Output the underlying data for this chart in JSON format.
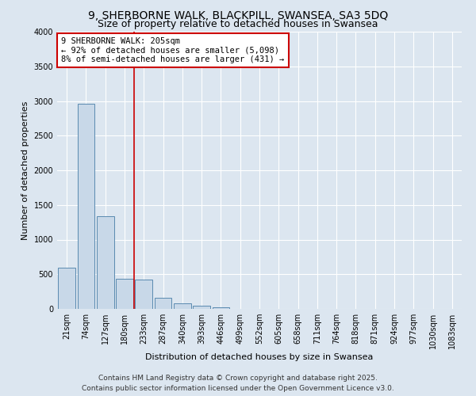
{
  "title": "9, SHERBORNE WALK, BLACKPILL, SWANSEA, SA3 5DQ",
  "subtitle": "Size of property relative to detached houses in Swansea",
  "xlabel": "Distribution of detached houses by size in Swansea",
  "ylabel": "Number of detached properties",
  "footer_line1": "Contains HM Land Registry data © Crown copyright and database right 2025.",
  "footer_line2": "Contains public sector information licensed under the Open Government Licence v3.0.",
  "categories": [
    "21sqm",
    "74sqm",
    "127sqm",
    "180sqm",
    "233sqm",
    "287sqm",
    "340sqm",
    "393sqm",
    "446sqm",
    "499sqm",
    "552sqm",
    "605sqm",
    "658sqm",
    "711sqm",
    "764sqm",
    "818sqm",
    "871sqm",
    "924sqm",
    "977sqm",
    "1030sqm",
    "1083sqm"
  ],
  "values": [
    600,
    2960,
    1340,
    430,
    420,
    165,
    75,
    45,
    20,
    0,
    0,
    0,
    0,
    0,
    0,
    0,
    0,
    0,
    0,
    0,
    0
  ],
  "bar_color": "#c8d8e8",
  "bar_edge_color": "#5a8ab0",
  "vline_color": "#cc0000",
  "annotation_text": "9 SHERBORNE WALK: 205sqm\n← 92% of detached houses are smaller (5,098)\n8% of semi-detached houses are larger (431) →",
  "annotation_box_facecolor": "#ffffff",
  "annotation_box_edgecolor": "#cc0000",
  "ylim": [
    0,
    4000
  ],
  "yticks": [
    0,
    500,
    1000,
    1500,
    2000,
    2500,
    3000,
    3500,
    4000
  ],
  "background_color": "#dce6f0",
  "plot_background_color": "#dce6f0",
  "grid_color": "#ffffff",
  "title_fontsize": 10,
  "subtitle_fontsize": 9,
  "axis_label_fontsize": 8,
  "tick_fontsize": 7,
  "annotation_fontsize": 7.5,
  "footer_fontsize": 6.5
}
